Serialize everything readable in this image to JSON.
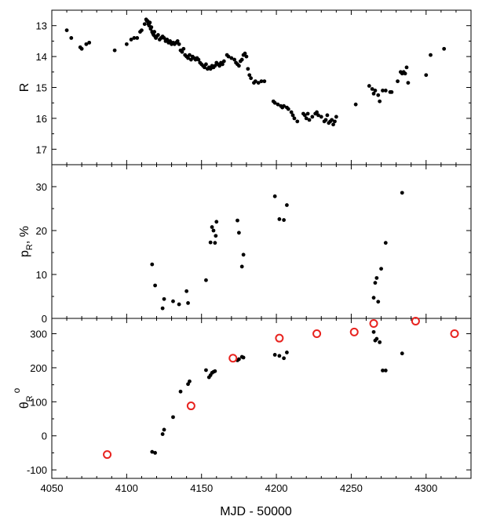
{
  "chart_data": {
    "type": "scatter",
    "xlabel": "MJD - 50000",
    "xlim": [
      4050,
      4330
    ],
    "xticks": [
      4050,
      4100,
      4150,
      4200,
      4250,
      4300
    ],
    "marker_color": "#000000",
    "open_marker_color": "#e8231f",
    "panels": [
      {
        "id": "R",
        "ylabel": "R",
        "ylim": [
          17.5,
          12.5
        ],
        "yticks": [
          13,
          14,
          15,
          16,
          17
        ],
        "inverted": true,
        "series": [
          {
            "marker": "filled",
            "points": [
              [
                4060,
                13.15
              ],
              [
                4063,
                13.4
              ],
              [
                4069,
                13.7
              ],
              [
                4070,
                13.75
              ],
              [
                4073,
                13.6
              ],
              [
                4075,
                13.55
              ],
              [
                4092,
                13.8
              ],
              [
                4100,
                13.6
              ],
              [
                4103,
                13.45
              ],
              [
                4105,
                13.4
              ],
              [
                4107,
                13.4
              ],
              [
                4109,
                13.2
              ],
              [
                4110,
                13.15
              ],
              [
                4112,
                12.95
              ],
              [
                4113,
                12.8
              ],
              [
                4113.5,
                12.85
              ],
              [
                4114,
                12.85
              ],
              [
                4114.5,
                12.95
              ],
              [
                4115,
                13.0
              ],
              [
                4115.5,
                12.9
              ],
              [
                4116,
                13.1
              ],
              [
                4116.5,
                13.05
              ],
              [
                4117,
                13.2
              ],
              [
                4117.5,
                13.25
              ],
              [
                4118,
                13.3
              ],
              [
                4118.5,
                13.2
              ],
              [
                4119,
                13.35
              ],
              [
                4119.5,
                13.4
              ],
              [
                4120,
                13.35
              ],
              [
                4121,
                13.3
              ],
              [
                4122,
                13.45
              ],
              [
                4123,
                13.4
              ],
              [
                4124,
                13.35
              ],
              [
                4125,
                13.4
              ],
              [
                4126,
                13.5
              ],
              [
                4127,
                13.45
              ],
              [
                4128,
                13.55
              ],
              [
                4129,
                13.5
              ],
              [
                4130,
                13.6
              ],
              [
                4131,
                13.55
              ],
              [
                4132,
                13.6
              ],
              [
                4133,
                13.55
              ],
              [
                4134,
                13.5
              ],
              [
                4135,
                13.6
              ],
              [
                4136,
                13.8
              ],
              [
                4137,
                13.85
              ],
              [
                4138,
                13.75
              ],
              [
                4139,
                13.95
              ],
              [
                4140,
                14.0
              ],
              [
                4141,
                14.05
              ],
              [
                4142,
                13.95
              ],
              [
                4143,
                14.1
              ],
              [
                4144,
                14.0
              ],
              [
                4145,
                14.05
              ],
              [
                4146,
                14.1
              ],
              [
                4147,
                14.05
              ],
              [
                4148,
                14.1
              ],
              [
                4149,
                14.2
              ],
              [
                4150,
                14.25
              ],
              [
                4151,
                14.3
              ],
              [
                4152,
                14.35
              ],
              [
                4153,
                14.25
              ],
              [
                4154,
                14.4
              ],
              [
                4155,
                14.35
              ],
              [
                4156,
                14.4
              ],
              [
                4157,
                14.3
              ],
              [
                4158,
                14.35
              ],
              [
                4159,
                14.3
              ],
              [
                4160,
                14.2
              ],
              [
                4161,
                14.25
              ],
              [
                4162,
                14.3
              ],
              [
                4163,
                14.2
              ],
              [
                4164,
                14.25
              ],
              [
                4165,
                14.15
              ],
              [
                4167,
                13.95
              ],
              [
                4168,
                14.0
              ],
              [
                4170,
                14.05
              ],
              [
                4172,
                14.1
              ],
              [
                4173,
                14.2
              ],
              [
                4174,
                14.25
              ],
              [
                4175,
                14.3
              ],
              [
                4176,
                14.15
              ],
              [
                4177,
                14.1
              ],
              [
                4178,
                13.95
              ],
              [
                4179,
                13.9
              ],
              [
                4180,
                14.0
              ],
              [
                4181,
                14.4
              ],
              [
                4182,
                14.6
              ],
              [
                4183,
                14.7
              ],
              [
                4185,
                14.85
              ],
              [
                4186,
                14.8
              ],
              [
                4188,
                14.85
              ],
              [
                4190,
                14.8
              ],
              [
                4192,
                14.8
              ],
              [
                4198,
                15.45
              ],
              [
                4199,
                15.5
              ],
              [
                4201,
                15.55
              ],
              [
                4203,
                15.6
              ],
              [
                4204,
                15.65
              ],
              [
                4205,
                15.6
              ],
              [
                4207,
                15.65
              ],
              [
                4208,
                15.7
              ],
              [
                4210,
                15.8
              ],
              [
                4211,
                15.9
              ],
              [
                4212,
                16.0
              ],
              [
                4214,
                16.1
              ],
              [
                4218,
                15.85
              ],
              [
                4219,
                15.9
              ],
              [
                4220,
                16.0
              ],
              [
                4221,
                15.85
              ],
              [
                4222,
                16.05
              ],
              [
                4224,
                15.95
              ],
              [
                4226,
                15.85
              ],
              [
                4227,
                15.8
              ],
              [
                4228,
                15.9
              ],
              [
                4230,
                15.95
              ],
              [
                4232,
                16.1
              ],
              [
                4233,
                16.05
              ],
              [
                4234,
                15.9
              ],
              [
                4235,
                16.15
              ],
              [
                4236,
                16.1
              ],
              [
                4237,
                16.05
              ],
              [
                4238,
                16.2
              ],
              [
                4239,
                16.1
              ],
              [
                4240,
                15.95
              ],
              [
                4253,
                15.55
              ],
              [
                4262,
                14.95
              ],
              [
                4264,
                15.05
              ],
              [
                4265,
                15.2
              ],
              [
                4266,
                15.1
              ],
              [
                4268,
                15.25
              ],
              [
                4269,
                15.45
              ],
              [
                4271,
                15.1
              ],
              [
                4273,
                15.1
              ],
              [
                4276,
                15.15
              ],
              [
                4277,
                15.15
              ],
              [
                4281,
                14.8
              ],
              [
                4283,
                14.5
              ],
              [
                4284,
                14.55
              ],
              [
                4285,
                14.5
              ],
              [
                4286,
                14.55
              ],
              [
                4287,
                14.35
              ],
              [
                4288,
                14.85
              ],
              [
                4300,
                14.6
              ],
              [
                4303,
                13.95
              ],
              [
                4312,
                13.75
              ]
            ]
          }
        ]
      },
      {
        "id": "p",
        "ylabel": "p",
        "ylabel_sub": "R",
        "ylabel_suffix": ", %",
        "ylim": [
          0,
          35
        ],
        "yticks": [
          0,
          10,
          20,
          30
        ],
        "inverted": false,
        "series": [
          {
            "marker": "filled",
            "points": [
              [
                4117,
                12.3
              ],
              [
                4119,
                7.5
              ],
              [
                4124,
                2.3
              ],
              [
                4125,
                4.4
              ],
              [
                4131,
                3.9
              ],
              [
                4135,
                3.2
              ],
              [
                4140,
                6.2
              ],
              [
                4141,
                3.5
              ],
              [
                4153,
                8.7
              ],
              [
                4156,
                17.3
              ],
              [
                4157,
                20.8
              ],
              [
                4158,
                20.0
              ],
              [
                4159,
                17.2
              ],
              [
                4159.5,
                18.8
              ],
              [
                4160,
                22.0
              ],
              [
                4174,
                22.3
              ],
              [
                4175,
                19.5
              ],
              [
                4177,
                11.8
              ],
              [
                4178,
                14.5
              ],
              [
                4199,
                27.8
              ],
              [
                4202,
                22.6
              ],
              [
                4205,
                22.4
              ],
              [
                4207,
                25.8
              ],
              [
                4265,
                4.7
              ],
              [
                4266,
                8.1
              ],
              [
                4267,
                9.2
              ],
              [
                4268,
                3.8
              ],
              [
                4270,
                11.3
              ],
              [
                4273,
                17.2
              ],
              [
                4284,
                28.6
              ]
            ]
          }
        ]
      },
      {
        "id": "theta",
        "ylabel": "θ",
        "ylabel_sub": "R",
        "ylabel_sup": "o",
        "ylim": [
          -125,
          345
        ],
        "yticks": [
          -100,
          0,
          100,
          200,
          300
        ],
        "inverted": false,
        "series": [
          {
            "marker": "filled",
            "points": [
              [
                4117,
                -47
              ],
              [
                4119,
                -50
              ],
              [
                4124,
                5
              ],
              [
                4125,
                18
              ],
              [
                4131,
                55
              ],
              [
                4136,
                130
              ],
              [
                4141,
                152
              ],
              [
                4142,
                160
              ],
              [
                4153,
                193
              ],
              [
                4155,
                172
              ],
              [
                4156,
                178
              ],
              [
                4157,
                185
              ],
              [
                4158,
                188
              ],
              [
                4159,
                190
              ],
              [
                4174,
                222
              ],
              [
                4175,
                225
              ],
              [
                4177,
                232
              ],
              [
                4178,
                230
              ],
              [
                4199,
                238
              ],
              [
                4202,
                235
              ],
              [
                4205,
                228
              ],
              [
                4207,
                245
              ],
              [
                4265,
                305
              ],
              [
                4266,
                280
              ],
              [
                4267,
                285
              ],
              [
                4269,
                275
              ],
              [
                4271,
                192
              ],
              [
                4273,
                192
              ],
              [
                4284,
                242
              ]
            ]
          },
          {
            "marker": "open",
            "points": [
              [
                4087,
                -55
              ],
              [
                4143,
                88
              ],
              [
                4171,
                228
              ],
              [
                4202,
                287
              ],
              [
                4227,
                300
              ],
              [
                4252,
                305
              ],
              [
                4265,
                330
              ],
              [
                4293,
                337
              ],
              [
                4319,
                300
              ]
            ]
          }
        ]
      }
    ]
  }
}
